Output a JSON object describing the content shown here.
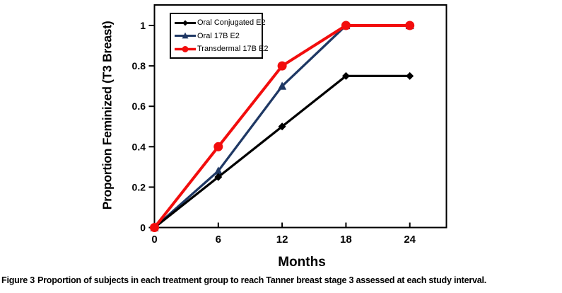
{
  "figure": {
    "caption_label": "Figure 3",
    "caption_text": "Proportion of subjects in each treatment group to reach Tanner breast stage 3 assessed at each study interval."
  },
  "chart_data": {
    "type": "line",
    "title": "",
    "xlabel": "Months",
    "ylabel": "Proportion Feminized (T3 Breast)",
    "x": [
      0,
      6,
      12,
      18,
      24
    ],
    "x_ticks": [
      "0",
      "6",
      "12",
      "18",
      "24"
    ],
    "y_ticks": [
      "0",
      "0.2",
      "0.4",
      "0.6",
      "0.8",
      "1"
    ],
    "xlim": [
      0,
      27.5
    ],
    "ylim": [
      0,
      1.1
    ],
    "grid": false,
    "legend_position": "top-left-inside",
    "draw_order": [
      1,
      0,
      2
    ],
    "series": [
      {
        "name": "Oral Conjugated E2",
        "marker": "diamond",
        "color": "#000000",
        "values": [
          0,
          0.25,
          0.5,
          0.75,
          0.75
        ]
      },
      {
        "name": "Oral 17B E2",
        "marker": "triangle",
        "color": "#1F3864",
        "values": [
          0,
          0.28,
          0.7,
          1,
          1
        ]
      },
      {
        "name": "Transdermal 17B E2",
        "marker": "circle",
        "color": "#F20D0D",
        "values": [
          0,
          0.4,
          0.8,
          1,
          1
        ]
      }
    ]
  }
}
